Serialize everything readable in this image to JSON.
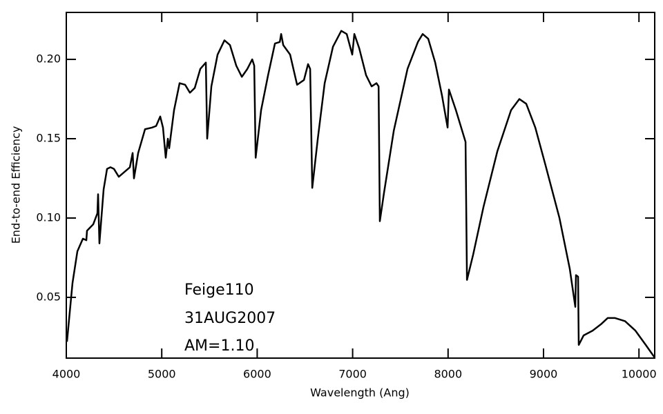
{
  "chart_data": {
    "type": "line",
    "x_label": "Wavelength (Ang)",
    "y_label": "End-to-end Efficiency",
    "annotations": [
      "Feige110",
      "31AUG2007",
      "AM=1.10"
    ],
    "xlim": [
      4000,
      10165
    ],
    "ylim": [
      0.0117,
      0.2296
    ],
    "xticks": [
      4000,
      5000,
      6000,
      7000,
      8000,
      9000,
      10000
    ],
    "yticks": [
      0.05,
      0.1,
      0.15,
      0.2
    ],
    "series": [
      {
        "color": "#000000",
        "x": [
          4007,
          4065,
          4116,
          4174,
          4210,
          4217,
          4282,
          4326,
          4333,
          4347,
          4391,
          4427,
          4463,
          4499,
          4550,
          4608,
          4666,
          4695,
          4709,
          4753,
          4825,
          4897,
          4941,
          4984,
          5013,
          5042,
          5064,
          5078,
          5129,
          5187,
          5245,
          5295,
          5346,
          5404,
          5462,
          5476,
          5520,
          5585,
          5657,
          5715,
          5781,
          5839,
          5897,
          5948,
          5969,
          5984,
          6041,
          6114,
          6186,
          6237,
          6251,
          6273,
          6345,
          6418,
          6490,
          6533,
          6555,
          6577,
          6635,
          6707,
          6794,
          6881,
          6938,
          6996,
          7018,
          7069,
          7141,
          7199,
          7250,
          7272,
          7285,
          7329,
          7431,
          7575,
          7684,
          7734,
          7792,
          7865,
          7937,
          7995,
          8009,
          8082,
          8183,
          8198,
          8263,
          8371,
          8516,
          8660,
          8747,
          8819,
          8914,
          9022,
          9167,
          9275,
          9333,
          9340,
          9362,
          9369,
          9420,
          9514,
          9601,
          9673,
          9746,
          9854,
          9963,
          10071,
          10165
        ],
        "values": [
          0.022,
          0.059,
          0.079,
          0.087,
          0.086,
          0.092,
          0.096,
          0.103,
          0.115,
          0.084,
          0.118,
          0.131,
          0.132,
          0.131,
          0.126,
          0.129,
          0.132,
          0.141,
          0.125,
          0.141,
          0.156,
          0.157,
          0.158,
          0.164,
          0.157,
          0.138,
          0.15,
          0.144,
          0.168,
          0.185,
          0.184,
          0.179,
          0.182,
          0.194,
          0.198,
          0.15,
          0.183,
          0.203,
          0.212,
          0.209,
          0.196,
          0.189,
          0.194,
          0.2,
          0.196,
          0.138,
          0.168,
          0.19,
          0.21,
          0.211,
          0.216,
          0.209,
          0.203,
          0.184,
          0.187,
          0.197,
          0.194,
          0.119,
          0.15,
          0.185,
          0.208,
          0.218,
          0.216,
          0.203,
          0.216,
          0.207,
          0.19,
          0.183,
          0.185,
          0.183,
          0.098,
          0.116,
          0.155,
          0.194,
          0.211,
          0.216,
          0.213,
          0.198,
          0.177,
          0.157,
          0.181,
          0.168,
          0.148,
          0.061,
          0.077,
          0.107,
          0.142,
          0.168,
          0.175,
          0.172,
          0.157,
          0.133,
          0.1,
          0.068,
          0.044,
          0.064,
          0.063,
          0.02,
          0.026,
          0.029,
          0.033,
          0.037,
          0.037,
          0.035,
          0.029,
          0.02,
          0.012
        ]
      }
    ]
  }
}
